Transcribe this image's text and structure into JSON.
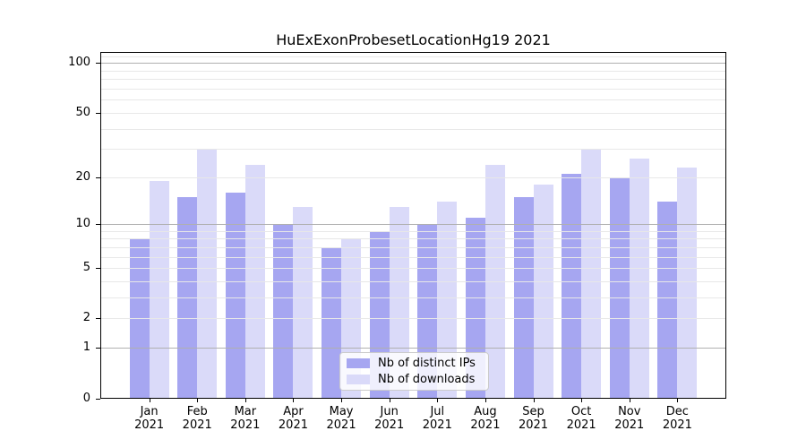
{
  "chart_data": {
    "type": "bar",
    "title": "HuExExonProbesetLocationHg19 2021",
    "categories": [
      "Jan",
      "Feb",
      "Mar",
      "Apr",
      "May",
      "Jun",
      "Jul",
      "Aug",
      "Sep",
      "Oct",
      "Nov",
      "Dec"
    ],
    "year_label": "2021",
    "series": [
      {
        "name": "Nb of distinct IPs",
        "color": "#a6a6f1",
        "values": [
          8,
          15,
          16,
          10,
          7,
          9,
          10,
          11,
          15,
          21,
          20,
          14
        ]
      },
      {
        "name": "Nb of downloads",
        "color": "#dadaf9",
        "values": [
          19,
          30,
          24,
          13,
          8,
          13,
          14,
          24,
          18,
          30,
          26,
          23
        ]
      }
    ],
    "xlabel": "",
    "ylabel": "",
    "y_scale": "log10(1+v)",
    "ylim": [
      0,
      113
    ],
    "y_tick_values": [
      0,
      1,
      2,
      5,
      10,
      20,
      50,
      100
    ],
    "y_major_grid_values": [
      1,
      10,
      100
    ],
    "y_minor_grid_values": [
      2,
      3,
      4,
      5,
      6,
      7,
      8,
      9,
      20,
      30,
      40,
      50,
      60,
      70,
      80,
      90,
      110
    ],
    "grid": "horizontal, drawn over bars",
    "legend_position": "lower center inside plot"
  },
  "colors": {
    "bar_ips": "#a6a6f1",
    "bar_downloads": "#dadaf9",
    "major_grid": "#b0b0b0",
    "minor_grid": "#e8e8e8",
    "axis": "#000000",
    "legend_border": "#cbcbcb",
    "background": "#ffffff"
  }
}
